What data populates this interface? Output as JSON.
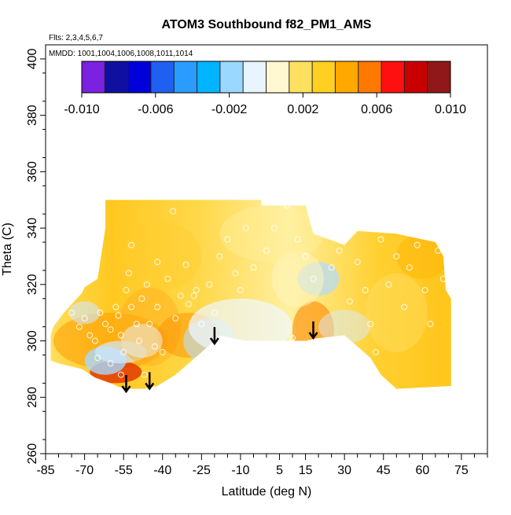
{
  "chart_data": {
    "type": "heatmap",
    "title": "ATOM3 Southbound f82_PM1_AMS",
    "annotations": [
      "Flts: 2,3,4,5,6,7",
      "MMDD: 1001,1004,1006,1008,1011,1014"
    ],
    "xlabel": "Latitude (deg N)",
    "ylabel": "Theta (C)",
    "xlim": [
      -85,
      85
    ],
    "ylim": [
      260,
      405
    ],
    "x_tick_labels": [
      "-85",
      "-70",
      "-55",
      "-40",
      "-25",
      "-10",
      "5",
      "15",
      "30",
      "45",
      "60",
      "75"
    ],
    "x_tick_values": [
      -85,
      -70,
      -55,
      -40,
      -25,
      -10,
      5,
      15,
      30,
      45,
      60,
      75
    ],
    "y_tick_values": [
      260,
      280,
      300,
      320,
      340,
      360,
      380,
      400
    ],
    "y_tick_labels": [
      "260",
      "280",
      "300",
      "320",
      "340",
      "360",
      "380",
      "400"
    ],
    "colorbar": {
      "range": [
        -0.01,
        0.01
      ],
      "tick_labels": [
        "-0.010",
        "-0.006",
        "-0.002",
        "0.002",
        "0.006",
        "0.010"
      ],
      "tick_values": [
        -0.01,
        -0.006,
        -0.002,
        0.002,
        0.006,
        0.01
      ],
      "colors": [
        "#7a22e0",
        "#1010a0",
        "#0000d8",
        "#2060f0",
        "#2a9cff",
        "#00b4ff",
        "#9ad8ff",
        "#e8f4ff",
        "#fff8d0",
        "#ffe060",
        "#ffd020",
        "#ffa800",
        "#ff7800",
        "#ff1010",
        "#c80000",
        "#901818"
      ]
    },
    "field_color_base": "#ffd84a",
    "data_region_outline": [
      [
        -83,
        293
      ],
      [
        -83,
        302
      ],
      [
        -82,
        305
      ],
      [
        -78,
        310
      ],
      [
        -71,
        317
      ],
      [
        -70,
        319
      ],
      [
        -65,
        322
      ],
      [
        -62,
        340
      ],
      [
        -62,
        350
      ],
      [
        -2,
        350
      ],
      [
        -2,
        348
      ],
      [
        15,
        348
      ],
      [
        18,
        338
      ],
      [
        30,
        334
      ],
      [
        35,
        339
      ],
      [
        50,
        338
      ],
      [
        65,
        335
      ],
      [
        68,
        330
      ],
      [
        69,
        318
      ],
      [
        71,
        315
      ],
      [
        71,
        284
      ],
      [
        50,
        283
      ],
      [
        44,
        288
      ],
      [
        40,
        294
      ],
      [
        30,
        302
      ],
      [
        20,
        301
      ],
      [
        15,
        300
      ],
      [
        0,
        300
      ],
      [
        -8,
        300
      ],
      [
        -18,
        302
      ],
      [
        -25,
        296
      ],
      [
        -30,
        292
      ],
      [
        -35,
        288
      ],
      [
        -42,
        284
      ],
      [
        -47,
        283
      ],
      [
        -55,
        283
      ],
      [
        -60,
        285
      ],
      [
        -66,
        287
      ],
      [
        -71,
        290
      ],
      [
        -80,
        292
      ]
    ],
    "arrows": [
      [
        -54,
        284
      ],
      [
        -45,
        285
      ],
      [
        -20,
        301
      ],
      [
        18,
        303
      ]
    ],
    "sample_points": [
      [
        -75,
        310
      ],
      [
        -72,
        305
      ],
      [
        -70,
        308
      ],
      [
        -68,
        302
      ],
      [
        -66,
        300
      ],
      [
        -64,
        310
      ],
      [
        -62,
        306
      ],
      [
        -60,
        304
      ],
      [
        -58,
        312
      ],
      [
        -57,
        309
      ],
      [
        -56,
        302
      ],
      [
        -55,
        296
      ],
      [
        -54,
        318
      ],
      [
        -53,
        324
      ],
      [
        -52,
        312
      ],
      [
        -50,
        306
      ],
      [
        -49,
        300
      ],
      [
        -48,
        315
      ],
      [
        -46,
        320
      ],
      [
        -45,
        306
      ],
      [
        -43,
        298
      ],
      [
        -42,
        312
      ],
      [
        -40,
        296
      ],
      [
        -38,
        322
      ],
      [
        -35,
        308
      ],
      [
        -33,
        316
      ],
      [
        -30,
        313
      ],
      [
        -27,
        318
      ],
      [
        -25,
        306
      ],
      [
        -22,
        320
      ],
      [
        -20,
        310
      ],
      [
        -18,
        330
      ],
      [
        -15,
        336
      ],
      [
        -12,
        324
      ],
      [
        -10,
        318
      ],
      [
        -8,
        340
      ],
      [
        -5,
        326
      ],
      [
        0,
        332
      ],
      [
        3,
        340
      ],
      [
        8,
        348
      ],
      [
        12,
        336
      ],
      [
        15,
        330
      ],
      [
        18,
        322
      ],
      [
        21,
        340
      ],
      [
        25,
        326
      ],
      [
        28,
        332
      ],
      [
        32,
        314
      ],
      [
        35,
        328
      ],
      [
        38,
        318
      ],
      [
        40,
        306
      ],
      [
        42,
        296
      ],
      [
        44,
        336
      ],
      [
        47,
        320
      ],
      [
        50,
        330
      ],
      [
        53,
        312
      ],
      [
        55,
        326
      ],
      [
        58,
        334
      ],
      [
        61,
        318
      ],
      [
        63,
        306
      ],
      [
        66,
        332
      ],
      [
        68,
        322
      ],
      [
        -65,
        294
      ],
      [
        -60,
        292
      ],
      [
        -56,
        288
      ],
      [
        -47,
        288
      ],
      [
        -52,
        334
      ],
      [
        -36,
        346
      ],
      [
        -42,
        328
      ],
      [
        -31,
        327
      ],
      [
        -28,
        316
      ],
      [
        -15,
        296
      ],
      [
        10,
        301
      ]
    ]
  }
}
